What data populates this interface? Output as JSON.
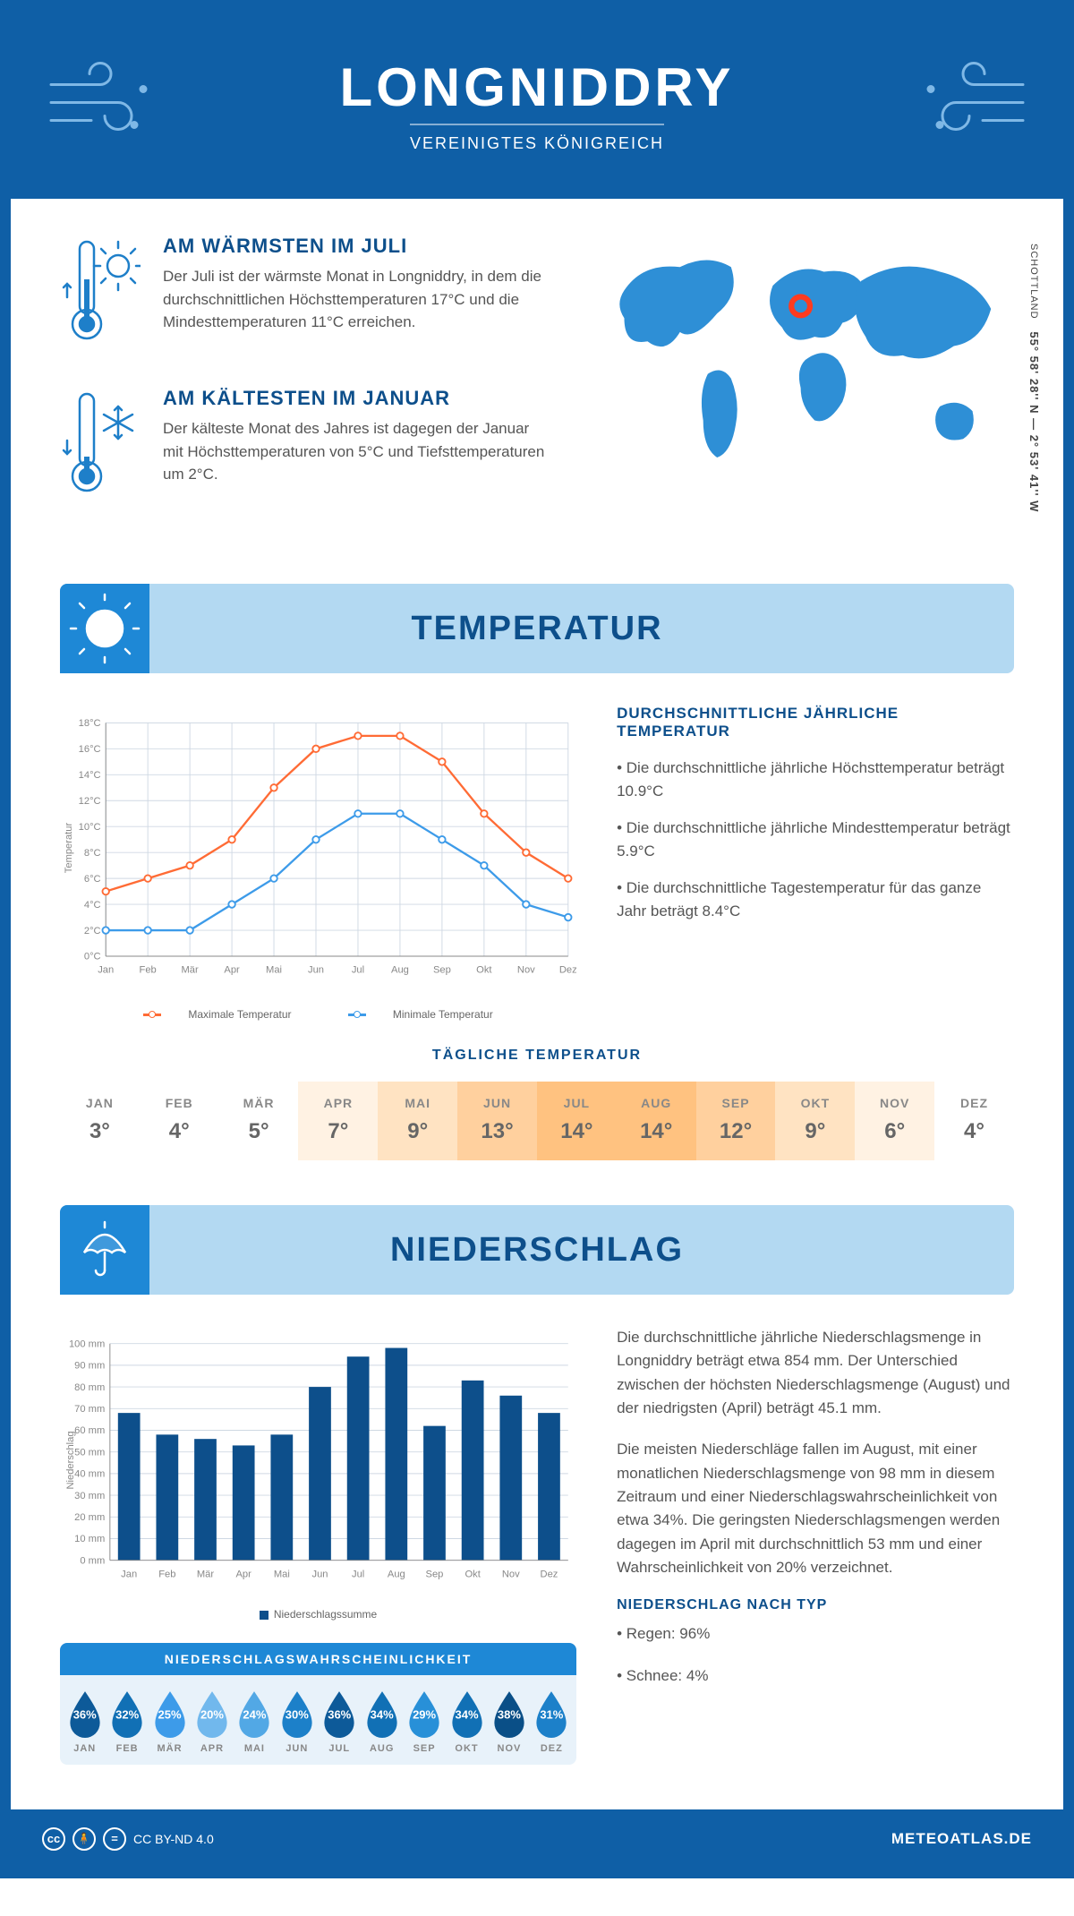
{
  "header": {
    "title": "LONGNIDDRY",
    "subtitle": "VEREINIGTES KÖNIGREICH"
  },
  "coords": {
    "text": "55° 58' 28'' N — 2° 53' 41'' W",
    "region": "SCHOTTLAND"
  },
  "fact_warm": {
    "title": "AM WÄRMSTEN IM JULI",
    "body": "Der Juli ist der wärmste Monat in Longniddry, in dem die durchschnittlichen Höchsttemperaturen 17°C und die Mindesttemperaturen 11°C erreichen."
  },
  "fact_cold": {
    "title": "AM KÄLTESTEN IM JANUAR",
    "body": "Der kälteste Monat des Jahres ist dagegen der Januar mit Höchsttemperaturen von 5°C und Tiefsttemperaturen um 2°C."
  },
  "section_temp": "TEMPERATUR",
  "section_precip": "NIEDERSCHLAG",
  "months": [
    "Jan",
    "Feb",
    "Mär",
    "Apr",
    "Mai",
    "Jun",
    "Jul",
    "Aug",
    "Sep",
    "Okt",
    "Nov",
    "Dez"
  ],
  "months_upper": [
    "JAN",
    "FEB",
    "MÄR",
    "APR",
    "MAI",
    "JUN",
    "JUL",
    "AUG",
    "SEP",
    "OKT",
    "NOV",
    "DEZ"
  ],
  "temp_chart": {
    "type": "line",
    "ylim": [
      0,
      18
    ],
    "ytick_step": 2,
    "y_unit": "°C",
    "ylabel": "Temperatur",
    "max_values": [
      5,
      6,
      7,
      9,
      13,
      16,
      17,
      17,
      15,
      11,
      8,
      6
    ],
    "min_values": [
      2,
      2,
      2,
      4,
      6,
      9,
      11,
      11,
      9,
      7,
      4,
      3
    ],
    "max_color": "#ff6b35",
    "min_color": "#3d9be9",
    "grid_color": "#cfd8e3",
    "bg": "#ffffff",
    "line_width": 2.5,
    "marker": "circle",
    "legend_max": "Maximale Temperatur",
    "legend_min": "Minimale Temperatur"
  },
  "temp_text": {
    "heading": "DURCHSCHNITTLICHE JÄHRLICHE TEMPERATUR",
    "l1": "• Die durchschnittliche jährliche Höchsttemperatur beträgt 10.9°C",
    "l2": "• Die durchschnittliche jährliche Mindesttemperatur beträgt 5.9°C",
    "l3": "• Die durchschnittliche Tagestemperatur für das ganze Jahr beträgt 8.4°C"
  },
  "daily_temp": {
    "title": "TÄGLICHE TEMPERATUR",
    "values": [
      "3°",
      "4°",
      "5°",
      "7°",
      "9°",
      "13°",
      "14°",
      "14°",
      "12°",
      "9°",
      "6°",
      "4°"
    ],
    "bg_colors": [
      "#ffffff",
      "#ffffff",
      "#ffffff",
      "#fff2e3",
      "#ffe3c2",
      "#ffd09e",
      "#ffc280",
      "#ffc280",
      "#ffd09e",
      "#ffe3c2",
      "#fff2e3",
      "#ffffff"
    ]
  },
  "precip_chart": {
    "type": "bar",
    "ylim": [
      0,
      100
    ],
    "ytick_step": 10,
    "y_unit": " mm",
    "ylabel": "Niederschlag",
    "values": [
      68,
      58,
      56,
      53,
      58,
      80,
      94,
      98,
      62,
      83,
      76,
      68
    ],
    "bar_color": "#0d4f8b",
    "grid_color": "#cfd8e3",
    "legend": "Niederschlagssumme"
  },
  "precip_text": {
    "p1": "Die durchschnittliche jährliche Niederschlagsmenge in Longniddry beträgt etwa 854 mm. Der Unterschied zwischen der höchsten Niederschlagsmenge (August) und der niedrigsten (April) beträgt 45.1 mm.",
    "p2": "Die meisten Niederschläge fallen im August, mit einer monatlichen Niederschlagsmenge von 98 mm in diesem Zeitraum und einer Niederschlagswahrscheinlichkeit von etwa 34%. Die geringsten Niederschlagsmengen werden dagegen im April mit durchschnittlich 53 mm und einer Wahrscheinlichkeit von 20% verzeichnet.",
    "type_title": "NIEDERSCHLAG NACH TYP",
    "type_l1": "• Regen: 96%",
    "type_l2": "• Schnee: 4%"
  },
  "prob": {
    "title": "NIEDERSCHLAGSWAHRSCHEINLICHKEIT",
    "values": [
      "36%",
      "32%",
      "25%",
      "20%",
      "24%",
      "30%",
      "36%",
      "34%",
      "29%",
      "34%",
      "38%",
      "31%"
    ],
    "colors": [
      "#0d5a99",
      "#1170b5",
      "#3d9be9",
      "#71b8ed",
      "#52a8e5",
      "#1c80c9",
      "#0d5a99",
      "#1170b5",
      "#2890d8",
      "#1170b5",
      "#0a4f87",
      "#1c80c9"
    ]
  },
  "footer": {
    "license": "CC BY-ND 4.0",
    "brand": "METEOATLAS.DE"
  }
}
